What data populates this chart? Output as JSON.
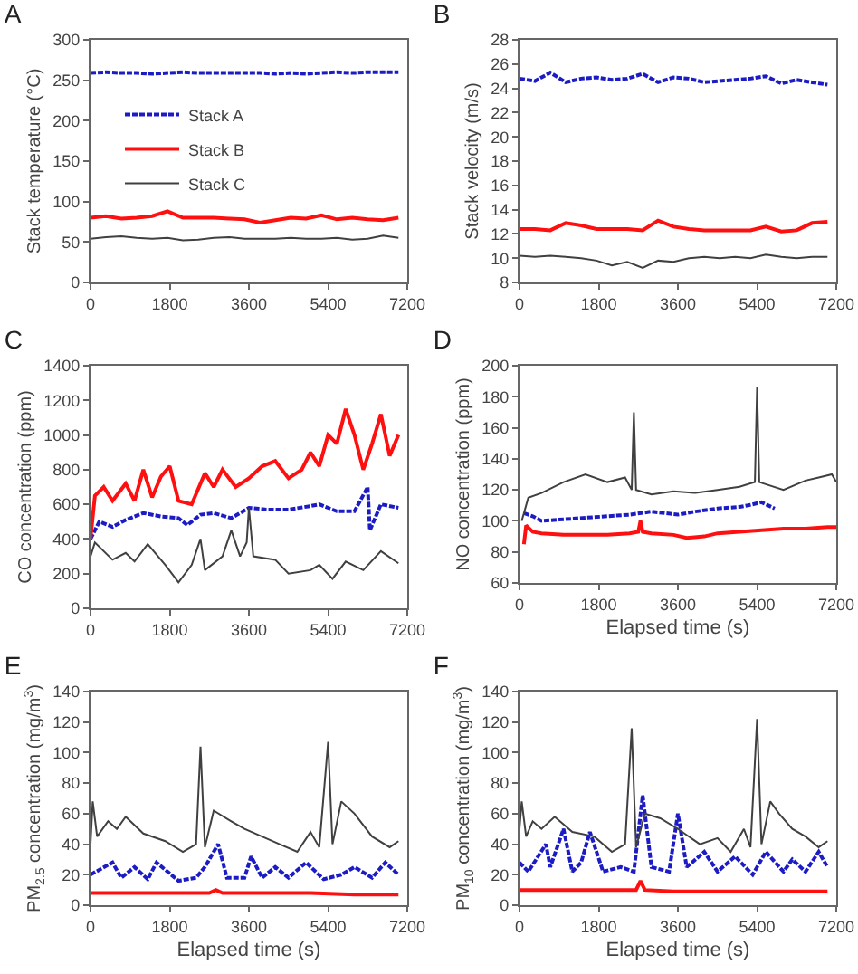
{
  "chart_data": [
    {
      "type": "line",
      "title": "A",
      "ylabel": "Stack temperature (°C)",
      "xlim": [
        0,
        7200
      ],
      "xticks": [
        0,
        1800,
        3600,
        5400,
        7200
      ],
      "ylim": [
        0,
        300
      ],
      "yticks": [
        0,
        50,
        100,
        150,
        200,
        250,
        300
      ],
      "legend": "top left",
      "series": [
        {
          "name": "Stack A",
          "color": "#1c1cc4",
          "line_style": "dashed",
          "x": [
            0,
            350,
            700,
            1050,
            1400,
            1750,
            2100,
            2450,
            2800,
            3150,
            3500,
            3850,
            4200,
            4550,
            4900,
            5250,
            5600,
            5950,
            6300,
            6650,
            7000
          ],
          "values": [
            259,
            260,
            259,
            259,
            258,
            259,
            260,
            259,
            259,
            259,
            259,
            259,
            258,
            259,
            258,
            259,
            260,
            259,
            260,
            260,
            260
          ]
        },
        {
          "name": "Stack B",
          "color": "#ff1010",
          "line_style": "solid",
          "x": [
            0,
            350,
            700,
            1050,
            1400,
            1750,
            2100,
            2450,
            2800,
            3150,
            3500,
            3850,
            4200,
            4550,
            4900,
            5250,
            5600,
            5950,
            6300,
            6650,
            7000
          ],
          "values": [
            80,
            82,
            79,
            80,
            82,
            88,
            80,
            80,
            80,
            79,
            78,
            74,
            77,
            80,
            79,
            83,
            78,
            80,
            78,
            77,
            80
          ]
        },
        {
          "name": "Stack C",
          "color": "#404040",
          "line_style": "solid",
          "x": [
            0,
            350,
            700,
            1050,
            1400,
            1750,
            2100,
            2450,
            2800,
            3150,
            3500,
            3850,
            4200,
            4550,
            4900,
            5250,
            5600,
            5950,
            6300,
            6650,
            7000
          ],
          "values": [
            54,
            56,
            57,
            55,
            54,
            55,
            52,
            53,
            55,
            56,
            54,
            54,
            54,
            55,
            54,
            54,
            55,
            53,
            54,
            58,
            55
          ]
        }
      ]
    },
    {
      "type": "line",
      "title": "B",
      "ylabel": "Stack velocity (m/s)",
      "xlim": [
        0,
        7200
      ],
      "xticks": [
        0,
        1800,
        3600,
        5400,
        7200
      ],
      "ylim": [
        8,
        28
      ],
      "yticks": [
        8,
        10,
        12,
        14,
        16,
        18,
        20,
        22,
        24,
        26,
        28
      ],
      "series": [
        {
          "color": "#1c1cc4",
          "line_style": "dashed",
          "x": [
            0,
            350,
            700,
            1050,
            1400,
            1750,
            2100,
            2450,
            2800,
            3150,
            3500,
            3850,
            4200,
            4550,
            4900,
            5250,
            5600,
            5950,
            6300,
            6650,
            7000
          ],
          "values": [
            24.8,
            24.6,
            25.3,
            24.5,
            24.8,
            24.9,
            24.7,
            24.8,
            25.2,
            24.5,
            24.9,
            24.8,
            24.5,
            24.6,
            24.7,
            24.8,
            25.0,
            24.4,
            24.7,
            24.5,
            24.3
          ]
        },
        {
          "color": "#ff1010",
          "line_style": "solid",
          "x": [
            0,
            350,
            700,
            1050,
            1400,
            1750,
            2100,
            2450,
            2800,
            3150,
            3500,
            3850,
            4200,
            4550,
            4900,
            5250,
            5600,
            5950,
            6300,
            6650,
            7000
          ],
          "values": [
            12.4,
            12.4,
            12.3,
            12.9,
            12.7,
            12.4,
            12.4,
            12.4,
            12.3,
            13.1,
            12.6,
            12.4,
            12.3,
            12.3,
            12.3,
            12.3,
            12.6,
            12.2,
            12.3,
            12.9,
            13.0
          ]
        },
        {
          "color": "#404040",
          "line_style": "solid",
          "x": [
            0,
            350,
            700,
            1050,
            1400,
            1750,
            2100,
            2450,
            2800,
            3150,
            3500,
            3850,
            4200,
            4550,
            4900,
            5250,
            5600,
            5950,
            6300,
            6650,
            7000
          ],
          "values": [
            10.2,
            10.1,
            10.2,
            10.1,
            10.0,
            9.8,
            9.4,
            9.7,
            9.2,
            9.8,
            9.7,
            10.0,
            10.1,
            10.0,
            10.1,
            10.0,
            10.3,
            10.1,
            10.0,
            10.1,
            10.1
          ]
        }
      ]
    },
    {
      "type": "line",
      "title": "C",
      "ylabel": "CO concentration (ppm)",
      "xlim": [
        0,
        7200
      ],
      "xticks": [
        0,
        1800,
        3600,
        5400,
        7200
      ],
      "ylim": [
        0,
        1400
      ],
      "yticks": [
        0,
        200,
        400,
        600,
        800,
        1000,
        1200,
        1400
      ],
      "series": [
        {
          "color": "#1c1cc4",
          "line_style": "dashed",
          "x": [
            0,
            200,
            500,
            800,
            1200,
            1600,
            2000,
            2200,
            2500,
            2800,
            3200,
            3600,
            4000,
            4500,
            5000,
            5200,
            5600,
            6000,
            6300,
            6350,
            6600,
            7000
          ],
          "values": [
            400,
            500,
            470,
            510,
            550,
            530,
            520,
            480,
            540,
            550,
            520,
            580,
            570,
            570,
            590,
            600,
            560,
            560,
            700,
            450,
            600,
            580
          ]
        },
        {
          "color": "#ff1010",
          "line_style": "solid",
          "x": [
            0,
            100,
            300,
            500,
            800,
            1000,
            1200,
            1400,
            1600,
            1800,
            2000,
            2300,
            2600,
            2800,
            3000,
            3300,
            3600,
            3900,
            4200,
            4500,
            4800,
            5000,
            5200,
            5400,
            5600,
            5800,
            6000,
            6200,
            6400,
            6600,
            6800,
            7000
          ],
          "values": [
            400,
            650,
            700,
            620,
            720,
            620,
            800,
            640,
            760,
            820,
            620,
            600,
            780,
            700,
            800,
            700,
            750,
            820,
            850,
            750,
            800,
            900,
            820,
            1000,
            950,
            1150,
            1000,
            800,
            950,
            1120,
            880,
            1000
          ]
        },
        {
          "color": "#404040",
          "line_style": "solid",
          "x": [
            0,
            100,
            500,
            800,
            1000,
            1300,
            1700,
            2000,
            2300,
            2500,
            2600,
            3000,
            3200,
            3400,
            3550,
            3600,
            3700,
            4200,
            4500,
            5000,
            5200,
            5500,
            5800,
            6200,
            6600,
            7000
          ],
          "values": [
            300,
            380,
            280,
            320,
            270,
            370,
            250,
            150,
            250,
            400,
            220,
            300,
            450,
            300,
            380,
            580,
            300,
            280,
            200,
            220,
            250,
            170,
            270,
            220,
            330,
            260
          ]
        }
      ]
    },
    {
      "type": "line",
      "title": "D",
      "xlabel": "Elapsed time (s)",
      "ylabel": "NO concentration (ppm)",
      "xlim": [
        0,
        7200
      ],
      "xticks": [
        0,
        1800,
        3600,
        5400,
        7200
      ],
      "ylim": [
        60,
        200
      ],
      "yticks": [
        60,
        80,
        100,
        120,
        140,
        160,
        180,
        200
      ],
      "series": [
        {
          "color": "#1c1cc4",
          "line_style": "dashed",
          "x": [
            100,
            300,
            500,
            1000,
            1500,
            2000,
            2500,
            3000,
            3600,
            4000,
            4500,
            5000,
            5200,
            5500,
            5800
          ],
          "values": [
            105,
            103,
            100,
            101,
            102,
            103,
            104,
            106,
            104,
            106,
            108,
            109,
            110,
            112,
            108
          ]
        },
        {
          "color": "#ff1010",
          "line_style": "solid",
          "x": [
            100,
            150,
            300,
            500,
            1000,
            1500,
            2000,
            2500,
            2700,
            2750,
            2800,
            3000,
            3500,
            3800,
            4200,
            4500,
            5000,
            5500,
            6000,
            6500,
            7000,
            7200
          ],
          "values": [
            85,
            97,
            93,
            92,
            91,
            91,
            91,
            92,
            93,
            100,
            93,
            92,
            91,
            89,
            90,
            92,
            93,
            94,
            95,
            95,
            96,
            96
          ]
        },
        {
          "color": "#404040",
          "line_style": "solid",
          "x": [
            50,
            200,
            500,
            1000,
            1500,
            2000,
            2400,
            2550,
            2600,
            2650,
            3000,
            3500,
            4000,
            4500,
            5000,
            5350,
            5400,
            5450,
            6000,
            6500,
            6800,
            7100,
            7200
          ],
          "values": [
            100,
            115,
            118,
            125,
            130,
            125,
            128,
            120,
            170,
            120,
            117,
            119,
            118,
            120,
            122,
            125,
            186,
            125,
            120,
            126,
            128,
            130,
            125
          ]
        }
      ]
    },
    {
      "type": "line",
      "title": "E",
      "xlabel": "Elapsed time (s)",
      "ylabel": "PM$_{2.5}$ concentration (mg/m$^{3}$)",
      "xlim": [
        0,
        7200
      ],
      "xticks": [
        0,
        1800,
        3600,
        5400,
        7200
      ],
      "ylim": [
        0,
        140
      ],
      "yticks": [
        0,
        20,
        40,
        60,
        80,
        100,
        120,
        140
      ],
      "series": [
        {
          "color": "#1c1cc4",
          "line_style": "dashed",
          "x": [
            0,
            500,
            700,
            1000,
            1300,
            1500,
            2000,
            2400,
            2600,
            2900,
            3100,
            3500,
            3650,
            3900,
            4200,
            4500,
            4900,
            5300,
            5700,
            6000,
            6400,
            6700,
            7000
          ],
          "values": [
            20,
            28,
            18,
            25,
            17,
            28,
            16,
            18,
            25,
            40,
            18,
            18,
            32,
            18,
            25,
            18,
            28,
            17,
            20,
            25,
            18,
            28,
            20
          ]
        },
        {
          "color": "#ff1010",
          "line_style": "solid",
          "x": [
            0,
            1000,
            2000,
            2700,
            2850,
            3000,
            4000,
            5000,
            6000,
            7000
          ],
          "values": [
            8,
            8,
            8,
            8,
            10,
            8,
            8,
            8,
            7,
            7
          ]
        },
        {
          "color": "#404040",
          "line_style": "solid",
          "x": [
            0,
            50,
            150,
            400,
            600,
            800,
            1200,
            1700,
            2100,
            2400,
            2500,
            2600,
            2800,
            3200,
            3500,
            3900,
            4300,
            4700,
            5000,
            5200,
            5400,
            5500,
            5700,
            6000,
            6400,
            6800,
            7000
          ],
          "values": [
            40,
            68,
            45,
            55,
            50,
            58,
            47,
            42,
            35,
            40,
            104,
            38,
            62,
            55,
            50,
            45,
            40,
            35,
            48,
            38,
            107,
            40,
            68,
            60,
            45,
            38,
            42
          ]
        }
      ]
    },
    {
      "type": "line",
      "title": "F",
      "xlabel": "Elapsed time (s)",
      "ylabel": "PM$_{10}$ concentration (mg/m$^{3}$)",
      "xlim": [
        0,
        7200
      ],
      "xticks": [
        0,
        1800,
        3600,
        5400,
        7200
      ],
      "ylim": [
        0,
        140
      ],
      "yticks": [
        0,
        20,
        40,
        60,
        80,
        100,
        120,
        140
      ],
      "series": [
        {
          "color": "#1c1cc4",
          "line_style": "dashed",
          "x": [
            0,
            200,
            600,
            700,
            1000,
            1200,
            1400,
            1600,
            1900,
            2300,
            2600,
            2800,
            3000,
            3400,
            3600,
            3800,
            4200,
            4500,
            4900,
            5300,
            5600,
            6000,
            6200,
            6500,
            6800,
            7000
          ],
          "values": [
            28,
            22,
            40,
            25,
            50,
            22,
            28,
            48,
            22,
            25,
            22,
            72,
            25,
            22,
            60,
            25,
            35,
            22,
            32,
            20,
            35,
            22,
            30,
            22,
            35,
            25
          ]
        },
        {
          "color": "#ff1010",
          "line_style": "solid",
          "x": [
            0,
            1000,
            2000,
            2650,
            2750,
            2850,
            3500,
            4500,
            5500,
            6500,
            7000
          ],
          "values": [
            10,
            10,
            10,
            10,
            16,
            10,
            9,
            9,
            9,
            9,
            9
          ]
        },
        {
          "color": "#404040",
          "line_style": "solid",
          "x": [
            0,
            50,
            150,
            300,
            500,
            800,
            1200,
            1700,
            2100,
            2400,
            2550,
            2650,
            2850,
            3200,
            3600,
            4100,
            4500,
            4800,
            5100,
            5250,
            5400,
            5500,
            5700,
            5900,
            6200,
            6500,
            6800,
            7000
          ],
          "values": [
            50,
            68,
            45,
            55,
            50,
            58,
            48,
            45,
            35,
            40,
            116,
            38,
            60,
            57,
            50,
            40,
            44,
            35,
            50,
            38,
            122,
            40,
            68,
            60,
            50,
            45,
            38,
            42
          ]
        }
      ]
    }
  ]
}
